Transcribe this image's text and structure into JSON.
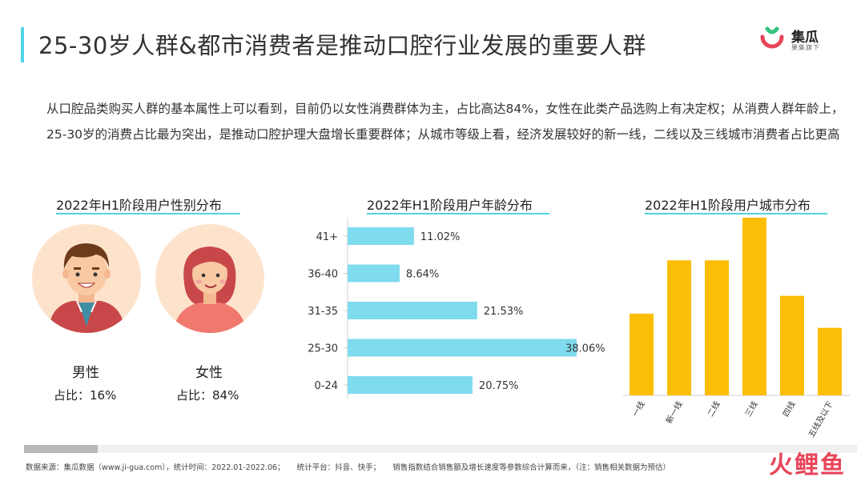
{
  "title": "25-30岁人群&都市消费者是推动口腔行业发展的重要人群",
  "logo": {
    "name": "集瓜",
    "sub": "果集旗下"
  },
  "intro": "从口腔品类购买人群的基本属性上可以看到，目前仍以女性消费群体为主，占比高达84%，女性在此类产品选购上有决定权；从消费人群年龄上，25-30岁的消费占比最为突出，是推动口腔护理大盘增长重要群体；从城市等级上看，经济发展较好的新一线，二线以及三线城市消费者占比更高",
  "gender": {
    "title": "2022年H1阶段用户性别分布",
    "male": {
      "label": "男性",
      "share": "占比：16%",
      "value": 16
    },
    "female": {
      "label": "女性",
      "share": "占比：84%",
      "value": 84
    }
  },
  "chart_data": [
    {
      "type": "bar",
      "orientation": "horizontal",
      "title": "2022年H1阶段用户年龄分布",
      "categories": [
        "41+",
        "36-40",
        "31-35",
        "25-30",
        "0-24"
      ],
      "values": [
        11.02,
        8.64,
        21.53,
        38.06,
        20.75
      ],
      "value_labels": [
        "11.02%",
        "8.64%",
        "21.53%",
        "38.06%",
        "20.75%"
      ],
      "color": "#7fdbee",
      "xlim": [
        0,
        38.06
      ]
    },
    {
      "type": "bar",
      "title": "2022年H1阶段用户城市分布",
      "categories": [
        "一线",
        "新一线",
        "二线",
        "三线",
        "四线",
        "五线及以下"
      ],
      "values": [
        11.5,
        19.0,
        19.0,
        25.0,
        14.0,
        9.5
      ],
      "color": "#fbbd05",
      "ylim": [
        0,
        25
      ]
    }
  ],
  "footer": {
    "source": "数据来源：集瓜数据（www.ji-gua.com），统计时间：2022.01-2022.06；",
    "platform": "统计平台：抖音、快手；",
    "note": "销售指数结合销售额及增长速度等参数综合计算而来，（注：销售相关数据为预估）"
  },
  "watermark": "火鲤鱼",
  "colors": {
    "accent": "#4fd3e6",
    "age_bar": "#7fdbee",
    "city_bar": "#fbbd05",
    "brand_red": "#e8455a"
  }
}
